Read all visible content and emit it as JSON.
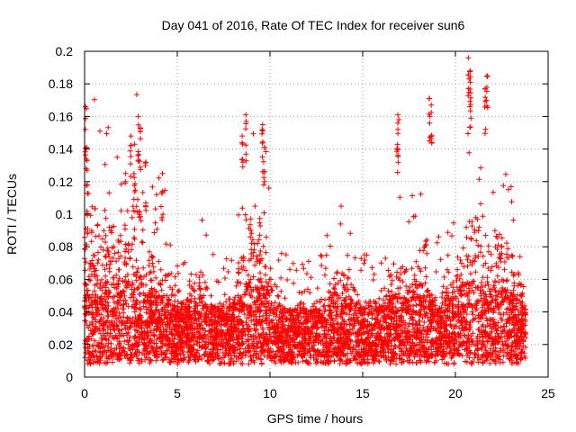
{
  "chart_data": {
    "type": "scatter",
    "title": "Day 041 of 2016, Rate Of TEC Index for receiver sun6",
    "xlabel": "GPS time / hours",
    "ylabel": "ROTI / TECUs",
    "xlim": [
      0,
      25
    ],
    "ylim": [
      0,
      0.2
    ],
    "x_ticks": [
      "0",
      "5",
      "10",
      "15",
      "20",
      "25"
    ],
    "y_ticks": [
      "0",
      "0.02",
      "0.04",
      "0.06",
      "0.08",
      "0.1",
      "0.12",
      "0.14",
      "0.16",
      "0.18",
      "0.2"
    ],
    "x_tick_values": [
      0,
      5,
      10,
      15,
      20,
      25
    ],
    "y_tick_values": [
      0,
      0.02,
      0.04,
      0.06,
      0.08,
      0.1,
      0.12,
      0.14,
      0.16,
      0.18,
      0.2
    ],
    "grid": true,
    "marker": "+",
    "color": "#ff0000",
    "x_data_range": [
      0,
      23.8
    ],
    "notable_points": [
      {
        "x": 0.05,
        "y": 0.166
      },
      {
        "x": 0.1,
        "y": 0.141
      },
      {
        "x": 0.15,
        "y": 0.118
      },
      {
        "x": 2.5,
        "y": 0.148
      },
      {
        "x": 2.7,
        "y": 0.143
      },
      {
        "x": 2.9,
        "y": 0.16
      },
      {
        "x": 3.0,
        "y": 0.153
      },
      {
        "x": 3.3,
        "y": 0.132
      },
      {
        "x": 4.2,
        "y": 0.125
      },
      {
        "x": 8.5,
        "y": 0.148
      },
      {
        "x": 8.7,
        "y": 0.161
      },
      {
        "x": 9.6,
        "y": 0.155
      },
      {
        "x": 9.7,
        "y": 0.141
      },
      {
        "x": 16.9,
        "y": 0.161
      },
      {
        "x": 16.9,
        "y": 0.152
      },
      {
        "x": 18.6,
        "y": 0.171
      },
      {
        "x": 18.7,
        "y": 0.167
      },
      {
        "x": 20.7,
        "y": 0.196
      },
      {
        "x": 20.8,
        "y": 0.188
      },
      {
        "x": 20.8,
        "y": 0.181
      },
      {
        "x": 21.7,
        "y": 0.185
      },
      {
        "x": 21.6,
        "y": 0.177
      }
    ]
  }
}
